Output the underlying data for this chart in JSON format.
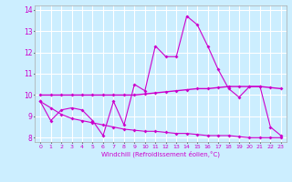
{
  "xlabel": "Windchill (Refroidissement éolien,°C)",
  "bg_color": "#cceeff",
  "grid_color": "#ffffff",
  "line_color": "#cc00cc",
  "x_labels": [
    "0",
    "1",
    "2",
    "3",
    "4",
    "5",
    "6",
    "7",
    "8",
    "9",
    "10",
    "11",
    "12",
    "13",
    "14",
    "15",
    "16",
    "17",
    "18",
    "19",
    "20",
    "21",
    "22",
    "23"
  ],
  "ylim": [
    7.8,
    14.2
  ],
  "xlim": [
    -0.5,
    23.5
  ],
  "yticks": [
    8,
    9,
    10,
    11,
    12,
    13,
    14
  ],
  "line1": [
    9.7,
    8.8,
    9.3,
    9.4,
    9.3,
    8.8,
    8.1,
    9.7,
    8.6,
    10.5,
    10.2,
    12.3,
    11.8,
    11.8,
    13.7,
    13.3,
    12.3,
    11.2,
    10.3,
    9.9,
    10.4,
    10.4,
    8.5,
    8.1
  ],
  "line2": [
    10.0,
    10.0,
    10.0,
    10.0,
    10.0,
    10.0,
    10.0,
    10.0,
    10.0,
    10.0,
    10.05,
    10.1,
    10.15,
    10.2,
    10.25,
    10.3,
    10.3,
    10.35,
    10.4,
    10.4,
    10.4,
    10.4,
    10.35,
    10.3
  ],
  "line3": [
    9.7,
    9.4,
    9.1,
    8.9,
    8.8,
    8.7,
    8.6,
    8.5,
    8.4,
    8.35,
    8.3,
    8.3,
    8.25,
    8.2,
    8.2,
    8.15,
    8.1,
    8.1,
    8.1,
    8.05,
    8.0,
    8.0,
    8.0,
    8.0
  ]
}
